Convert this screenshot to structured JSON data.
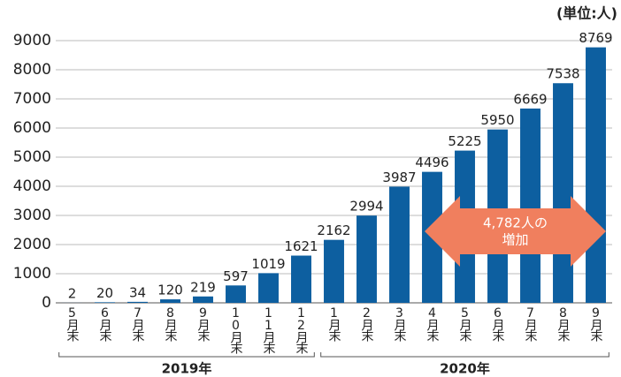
{
  "chart_data": {
    "type": "bar",
    "unit_label": "(単位:人)",
    "categories": [
      "5月末",
      "6月末",
      "7月末",
      "8月末",
      "9月末",
      "10月末",
      "11月末",
      "12月末",
      "1月末",
      "2月末",
      "3月末",
      "4月末",
      "5月末",
      "6月末",
      "7月末",
      "8月末",
      "9月末"
    ],
    "values": [
      2,
      20,
      34,
      120,
      219,
      597,
      1019,
      1621,
      2162,
      2994,
      3987,
      4496,
      5225,
      5950,
      6669,
      7538,
      8769
    ],
    "color": "#0d5fa0",
    "ylim": [
      0,
      9000
    ],
    "yticks": [
      0,
      1000,
      2000,
      3000,
      4000,
      5000,
      6000,
      7000,
      8000,
      9000
    ],
    "groups": [
      {
        "label": "2019年",
        "from": 0,
        "to": 7
      },
      {
        "label": "2020年",
        "from": 8,
        "to": 16
      }
    ],
    "annotation": {
      "text": "4,782人の\n増加",
      "color": "#f07f5e"
    }
  }
}
